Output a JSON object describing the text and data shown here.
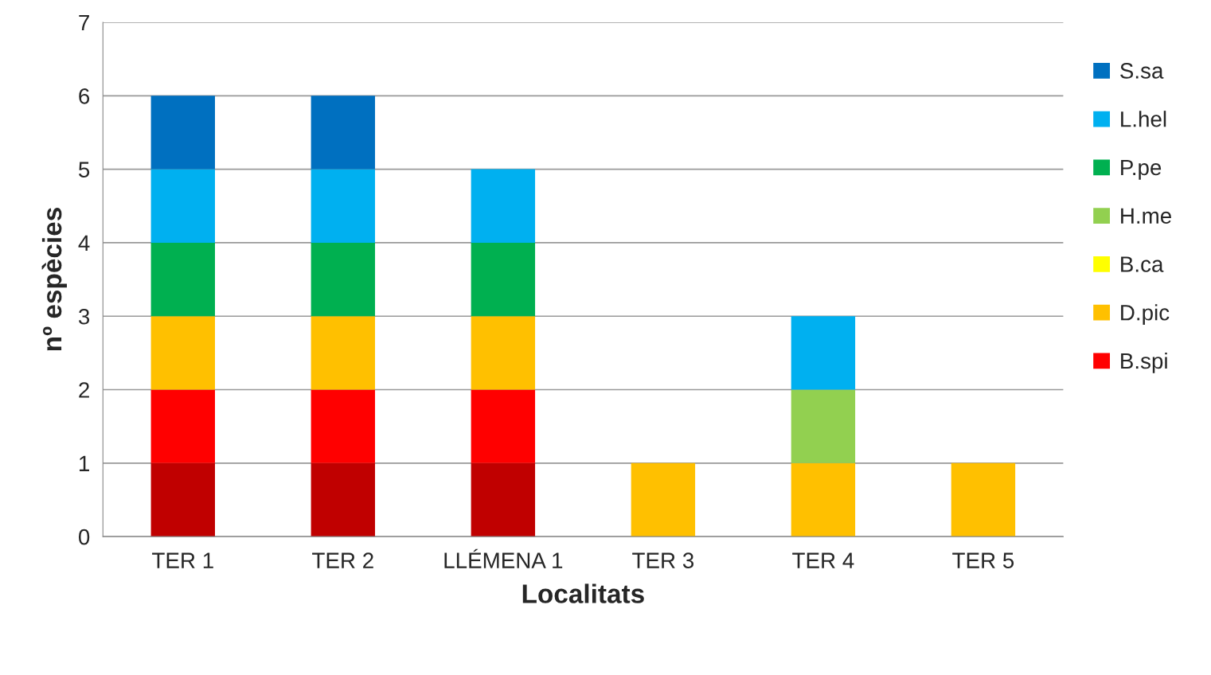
{
  "chart_data": {
    "type": "bar",
    "stacked": true,
    "xlabel": "Localitats",
    "ylabel": "nº espècies",
    "categories": [
      "TER 1",
      "TER 2",
      "LLÉMENA 1",
      "TER 3",
      "TER 4",
      "TER 5"
    ],
    "series": [
      {
        "color": "#c00000",
        "values": [
          1,
          1,
          1,
          0,
          0,
          0
        ]
      },
      {
        "name": "B.spi",
        "color": "#ff0000",
        "values": [
          1,
          1,
          1,
          0,
          0,
          0
        ]
      },
      {
        "name": "D.pic",
        "color": "#ffc000",
        "values": [
          1,
          1,
          1,
          1,
          1,
          1
        ]
      },
      {
        "name": "B.ca",
        "color": "#ffff00",
        "values": [
          0,
          0,
          0,
          0,
          0,
          0
        ]
      },
      {
        "name": "H.me",
        "color": "#92d050",
        "values": [
          0,
          0,
          0,
          0,
          1,
          0
        ]
      },
      {
        "name": "P.pe",
        "color": "#00b050",
        "values": [
          1,
          1,
          1,
          0,
          0,
          0
        ]
      },
      {
        "name": "L.hel",
        "color": "#00b0f0",
        "values": [
          1,
          1,
          1,
          0,
          1,
          0
        ]
      },
      {
        "name": "S.sa",
        "color": "#0070c0",
        "values": [
          1,
          1,
          0,
          0,
          0,
          0
        ]
      }
    ],
    "ylim": [
      0,
      7
    ],
    "yticks": [
      0,
      1,
      2,
      3,
      4,
      5,
      6,
      7
    ],
    "grid": "y",
    "legend": "right"
  }
}
